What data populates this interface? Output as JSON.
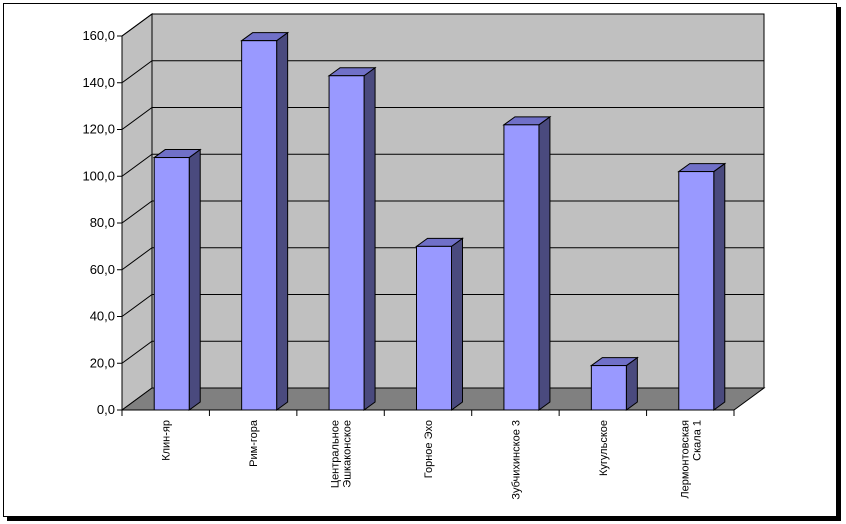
{
  "chart_data": {
    "type": "bar",
    "title": "",
    "xlabel": "",
    "ylabel": "",
    "ylim": [
      0,
      160
    ],
    "ytick_values": [
      0,
      20,
      40,
      60,
      80,
      100,
      120,
      140,
      160
    ],
    "ytick_labels": [
      "0,0",
      "20,0",
      "40,0",
      "60,0",
      "80,0",
      "100,0",
      "120,0",
      "140,0",
      "160,0"
    ],
    "categories": [
      [
        "Клин-яр"
      ],
      [
        "Рим-гора"
      ],
      [
        "Центральное",
        "Эшкаконское"
      ],
      [
        "Горное Эхо"
      ],
      [
        "Зубчихинское 3"
      ],
      [
        "Кугульское"
      ],
      [
        "Лермонтовская",
        "Скала 1"
      ]
    ],
    "values": [
      108,
      158,
      143,
      70,
      122,
      19,
      102
    ],
    "grid": true,
    "legend": "none",
    "bar_front_color": "#9999ff",
    "bar_side_color": "#4a4a7e",
    "bar_top_color": "#7070c8",
    "wall_color": "#c0c0c0",
    "floor_color": "#808080"
  }
}
